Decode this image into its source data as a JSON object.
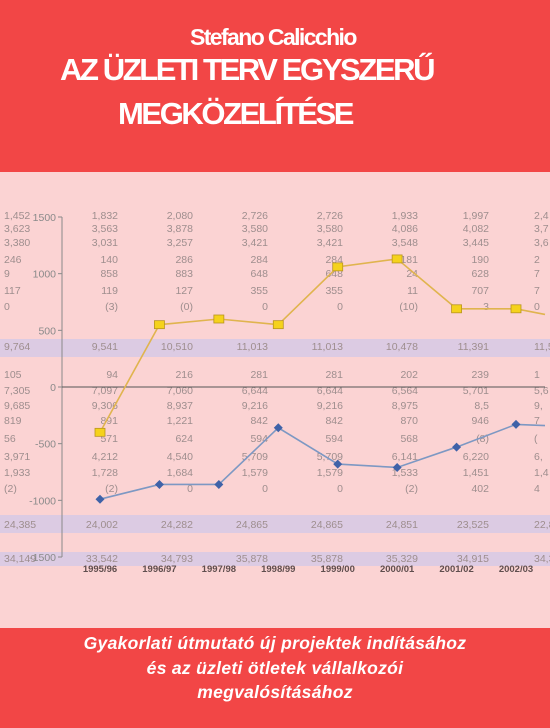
{
  "cover": {
    "author": "Stefano Calicchio",
    "title_line1": "AZ ÜZLETI TERV EGYSZERŰ",
    "title_line2": "MEGKÖZELÍTÉSE",
    "subtitle_line1": "Gyakorlati útmutató új projektek indításához",
    "subtitle_line2": "és az üzleti ötletek vállalkozói",
    "subtitle_line3": "megvalósításához"
  },
  "colors": {
    "brand_red": "#f24646",
    "figure_bg": "#fbd3d3",
    "band_bg": "#dccbe3",
    "table_text": "#9e8e8e",
    "line_gold": "#e0b44e",
    "marker_gold": "#f5d21c",
    "line_blue": "#7d98c3",
    "marker_blue": "#3f62a8"
  },
  "table": {
    "rows": [
      [
        "1,452",
        "1,832",
        "2,080",
        "2,726",
        "2,726",
        "1,933",
        "1,997",
        "2,4"
      ],
      [
        "3,623",
        "3,563",
        "3,878",
        "3,580",
        "3,580",
        "4,086",
        "4,082",
        "3,7"
      ],
      [
        "3,380",
        "3,031",
        "3,257",
        "3,421",
        "3,421",
        "3,548",
        "3,445",
        "3,6"
      ],
      [
        "246",
        "140",
        "286",
        "284",
        "284",
        "181",
        "190",
        "2"
      ],
      [
        "9",
        "858",
        "883",
        "648",
        "648",
        "24",
        "628",
        "7"
      ],
      [
        "117",
        "119",
        "127",
        "355",
        "355",
        "11",
        "707",
        "7"
      ],
      [
        "0",
        "(3)",
        "(0)",
        "0",
        "0",
        "(10)",
        "3",
        "0"
      ],
      [
        "9,764",
        "9,541",
        "10,510",
        "11,013",
        "11,013",
        "10,478",
        "11,391",
        "11,5"
      ],
      [
        "105",
        "94",
        "216",
        "281",
        "281",
        "202",
        "239",
        "1"
      ],
      [
        "7,305",
        "7,097",
        "7,060",
        "6,644",
        "6,644",
        "6,564",
        "5,701",
        "5,6"
      ],
      [
        "9,685",
        "9,306",
        "8,937",
        "9,216",
        "9,216",
        "8,975",
        "8,5",
        "9,"
      ],
      [
        "819",
        "891",
        "1,221",
        "842",
        "842",
        "870",
        "946",
        "7"
      ],
      [
        "56",
        "571",
        "624",
        "594",
        "594",
        "568",
        "(8)",
        "("
      ],
      [
        "3,971",
        "4,212",
        "4,540",
        "5,709",
        "5,709",
        "6,141",
        "6,220",
        "6,"
      ],
      [
        "1,933",
        "1,728",
        "1,684",
        "1,579",
        "1,579",
        "1,533",
        "1,451",
        "1,4"
      ],
      [
        "(2)",
        "(2)",
        "0",
        "0",
        "0",
        "(2)",
        "402",
        "4"
      ],
      [
        "24,385",
        "24,002",
        "24,282",
        "24,865",
        "24,865",
        "24,851",
        "23,525",
        "22,8"
      ],
      [
        "34,149",
        "33,542",
        "34,793",
        "35,878",
        "35,878",
        "35,329",
        "34,915",
        "34,3"
      ]
    ]
  },
  "chart_data": {
    "type": "line",
    "x": [
      "1995/96",
      "1996/97",
      "1997/98",
      "1998/99",
      "1999/00",
      "2000/01",
      "2001/02",
      "2002/03"
    ],
    "y_ticks": [
      "1500",
      "1000",
      "500",
      "0",
      "-500",
      "-1000",
      "-1500"
    ],
    "ylim": [
      -1500,
      1500
    ],
    "series": [
      {
        "values": [
          -400,
          550,
          600,
          550,
          1060,
          1130,
          690,
          690
        ]
      },
      {
        "values": [
          -990,
          -860,
          -860,
          -360,
          -680,
          -710,
          -530,
          -330
        ]
      }
    ],
    "trailing": [
      640,
      -340
    ]
  }
}
